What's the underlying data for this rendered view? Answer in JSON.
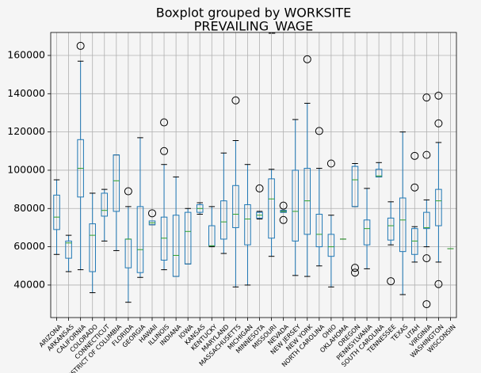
{
  "chart_data": {
    "type": "boxplot",
    "title": "Boxplot grouped by WORKSITE",
    "subtitle": "PREVAILING_WAGE",
    "categories": [
      "ARIZONA",
      "ARKANSAS",
      "CALIFORNIA",
      "COLORADO",
      "CONNECTICUT",
      "DISTRICT OF COLUMBIA",
      "FLORIDA",
      "GEORGIA",
      "HAWAII",
      "ILLINOIS",
      "INDIANA",
      "IOWA",
      "KANSAS",
      "KENTUCKY",
      "MARYLAND",
      "MASSACHUSETTS",
      "MICHIGAN",
      "MINNESOTA",
      "MISSOURI",
      "NEVADA",
      "NEW JERSEY",
      "NEW YORK",
      "NORTH CAROLINA",
      "OHIO",
      "OKLAHOMA",
      "OREGON",
      "PENNSYLVANIA",
      "SOUTH CAROLINA",
      "TENNESSEE",
      "TEXAS",
      "UTAH",
      "VIRGINIA",
      "WASHINGTON",
      "WISCONSIN"
    ],
    "boxes": [
      {
        "whislo": 56000,
        "q1": 69000,
        "median": 75500,
        "q3": 87000,
        "whishi": 95000,
        "fliers": []
      },
      {
        "whislo": 47000,
        "q1": 54000,
        "median": 62000,
        "q3": 63000,
        "whishi": 66000,
        "fliers": []
      },
      {
        "whislo": 48000,
        "q1": 86000,
        "median": 101000,
        "q3": 116000,
        "whishi": 157000,
        "fliers": [
          165000
        ]
      },
      {
        "whislo": 36000,
        "q1": 47000,
        "median": 66000,
        "q3": 72000,
        "whishi": 88000,
        "fliers": []
      },
      {
        "whislo": 63000,
        "q1": 76000,
        "median": 79000,
        "q3": 88000,
        "whishi": 90000,
        "fliers": []
      },
      {
        "whislo": 58000,
        "q1": 78500,
        "median": 94500,
        "q3": 108000,
        "whishi": 108000,
        "fliers": []
      },
      {
        "whislo": 31000,
        "q1": 49000,
        "median": 64000,
        "q3": 64000,
        "whishi": 81000,
        "fliers": [
          89000
        ]
      },
      {
        "whislo": 44000,
        "q1": 46500,
        "median": 58500,
        "q3": 81000,
        "whishi": 117000,
        "fliers": []
      },
      {
        "whislo": 71500,
        "q1": 71500,
        "median": 72500,
        "q3": 73500,
        "whishi": 73500,
        "fliers": [
          77500
        ]
      },
      {
        "whislo": 48000,
        "q1": 53000,
        "median": 64500,
        "q3": 75500,
        "whishi": 103000,
        "fliers": [
          110000,
          125000
        ]
      },
      {
        "whislo": 44500,
        "q1": 44500,
        "median": 55500,
        "q3": 76500,
        "whishi": 96500,
        "fliers": []
      },
      {
        "whislo": 51000,
        "q1": 51000,
        "median": 68000,
        "q3": 78000,
        "whishi": 80000,
        "fliers": []
      },
      {
        "whislo": 77000,
        "q1": 78000,
        "median": 80000,
        "q3": 82000,
        "whishi": 83000,
        "fliers": []
      },
      {
        "whislo": 60000,
        "q1": 60500,
        "median": 60500,
        "q3": 71000,
        "whishi": 81000,
        "fliers": []
      },
      {
        "whislo": 56500,
        "q1": 64000,
        "median": 73000,
        "q3": 84000,
        "whishi": 109000,
        "fliers": []
      },
      {
        "whislo": 39000,
        "q1": 70000,
        "median": 77000,
        "q3": 92000,
        "whishi": 115500,
        "fliers": [
          136500
        ]
      },
      {
        "whislo": 40000,
        "q1": 61000,
        "median": 74500,
        "q3": 82000,
        "whishi": 103000,
        "fliers": []
      },
      {
        "whislo": 74500,
        "q1": 75000,
        "median": 76500,
        "q3": 78000,
        "whishi": 78500,
        "fliers": [
          90500
        ]
      },
      {
        "whislo": 55000,
        "q1": 64500,
        "median": 85000,
        "q3": 95500,
        "whishi": 100500,
        "fliers": []
      },
      {
        "whislo": 78000,
        "q1": 78000,
        "median": 78500,
        "q3": 79000,
        "whishi": 79000,
        "fliers": [
          81500,
          74000
        ]
      },
      {
        "whislo": 45000,
        "q1": 63000,
        "median": 78500,
        "q3": 100000,
        "whishi": 126500,
        "fliers": []
      },
      {
        "whislo": 44500,
        "q1": 66500,
        "median": 84000,
        "q3": 101000,
        "whishi": 135000,
        "fliers": [
          158000
        ]
      },
      {
        "whislo": 50000,
        "q1": 60000,
        "median": 66500,
        "q3": 77000,
        "whishi": 101000,
        "fliers": [
          120500
        ]
      },
      {
        "whislo": 39000,
        "q1": 55000,
        "median": 60000,
        "q3": 66500,
        "whishi": 76500,
        "fliers": [
          103500
        ]
      },
      {
        "whislo": 64000,
        "q1": 64000,
        "median": 64000,
        "q3": 64000,
        "whishi": 64000,
        "fliers": []
      },
      {
        "whislo": 81000,
        "q1": 81000,
        "median": 95000,
        "q3": 102000,
        "whishi": 103500,
        "fliers": [
          49000,
          46500
        ]
      },
      {
        "whislo": 48500,
        "q1": 61000,
        "median": 69500,
        "q3": 74000,
        "whishi": 90500,
        "fliers": []
      },
      {
        "whislo": 96500,
        "q1": 96500,
        "median": 97000,
        "q3": 100500,
        "whishi": 104000,
        "fliers": []
      },
      {
        "whislo": 61000,
        "q1": 63500,
        "median": 71000,
        "q3": 75000,
        "whishi": 83500,
        "fliers": [
          42000
        ]
      },
      {
        "whislo": 35000,
        "q1": 57500,
        "median": 74000,
        "q3": 85500,
        "whishi": 120000,
        "fliers": []
      },
      {
        "whislo": 52000,
        "q1": 56000,
        "median": 63000,
        "q3": 69500,
        "whishi": 70500,
        "fliers": [
          91000,
          107500
        ]
      },
      {
        "whislo": 60000,
        "q1": 69500,
        "median": 70000,
        "q3": 78000,
        "whishi": 84500,
        "fliers": [
          138000,
          108000,
          54000,
          30000
        ]
      },
      {
        "whislo": 52000,
        "q1": 71000,
        "median": 84000,
        "q3": 90000,
        "whishi": 114500,
        "fliers": [
          139000,
          124500,
          40500
        ]
      },
      {
        "whislo": 59000,
        "q1": 59000,
        "median": 59000,
        "q3": 59000,
        "whishi": 59000,
        "fliers": []
      }
    ],
    "color": "#1f77b4",
    "median_color": "#2ca02c",
    "ylim": [
      23000,
      172000
    ],
    "yticks": [
      40000,
      60000,
      80000,
      100000,
      120000,
      140000,
      160000
    ],
    "grid": true
  }
}
